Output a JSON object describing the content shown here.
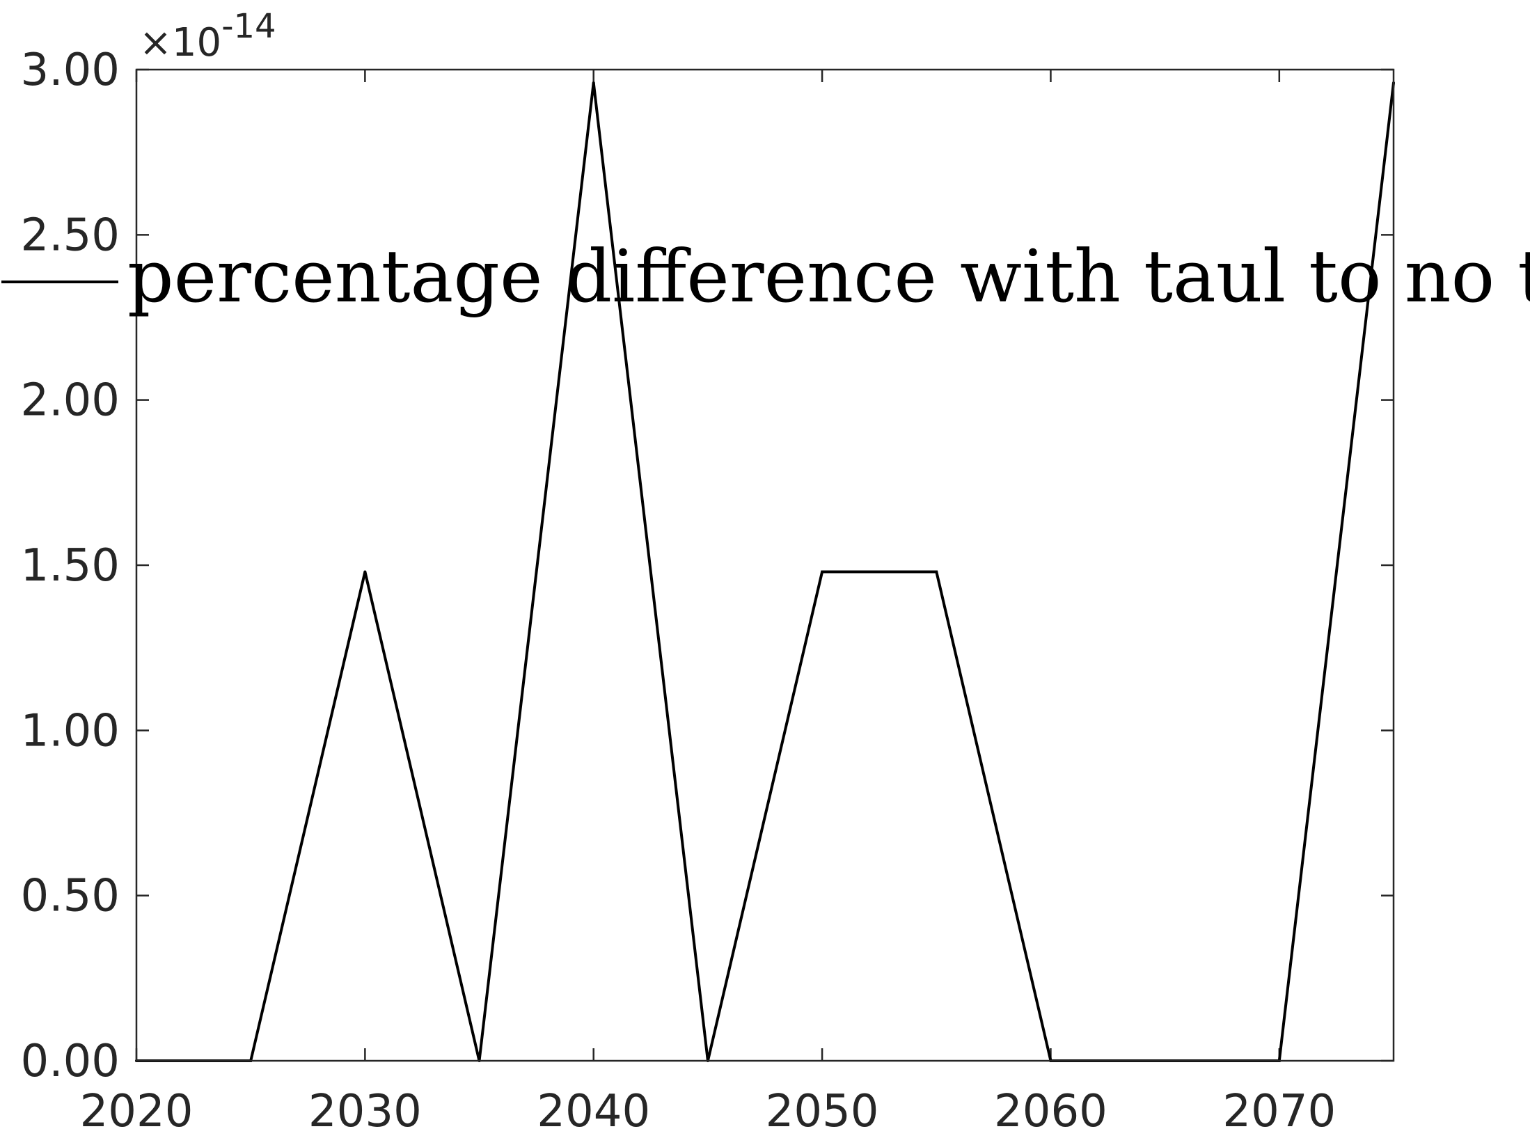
{
  "chart_data": {
    "type": "line",
    "x": [
      2020,
      2025,
      2030,
      2035,
      2040,
      2045,
      2050,
      2055,
      2060,
      2065,
      2070,
      2075
    ],
    "series": [
      {
        "name": "percentage difference with taul to no taul",
        "values": [
          0,
          0,
          1.48,
          0,
          2.96,
          0,
          1.48,
          1.48,
          0,
          0,
          0,
          2.96
        ],
        "color": "#000000"
      }
    ],
    "xlim": [
      2020,
      2075
    ],
    "ylim": [
      0,
      3.0
    ],
    "xticks": [
      2020,
      2030,
      2040,
      2050,
      2060,
      2070
    ],
    "xtick_labels": [
      "2020",
      "2030",
      "2040",
      "2050",
      "2060",
      "2070"
    ],
    "yticks": [
      0,
      0.5,
      1.0,
      1.5,
      2.0,
      2.5,
      3.0
    ],
    "ytick_labels": [
      "0.00",
      "0.50",
      "1.00",
      "1.50",
      "2.00",
      "2.50",
      "3.00"
    ],
    "y_multiplier": {
      "prefix": "×10",
      "exponent": "-14"
    },
    "grid": false,
    "legend_position": "top"
  }
}
